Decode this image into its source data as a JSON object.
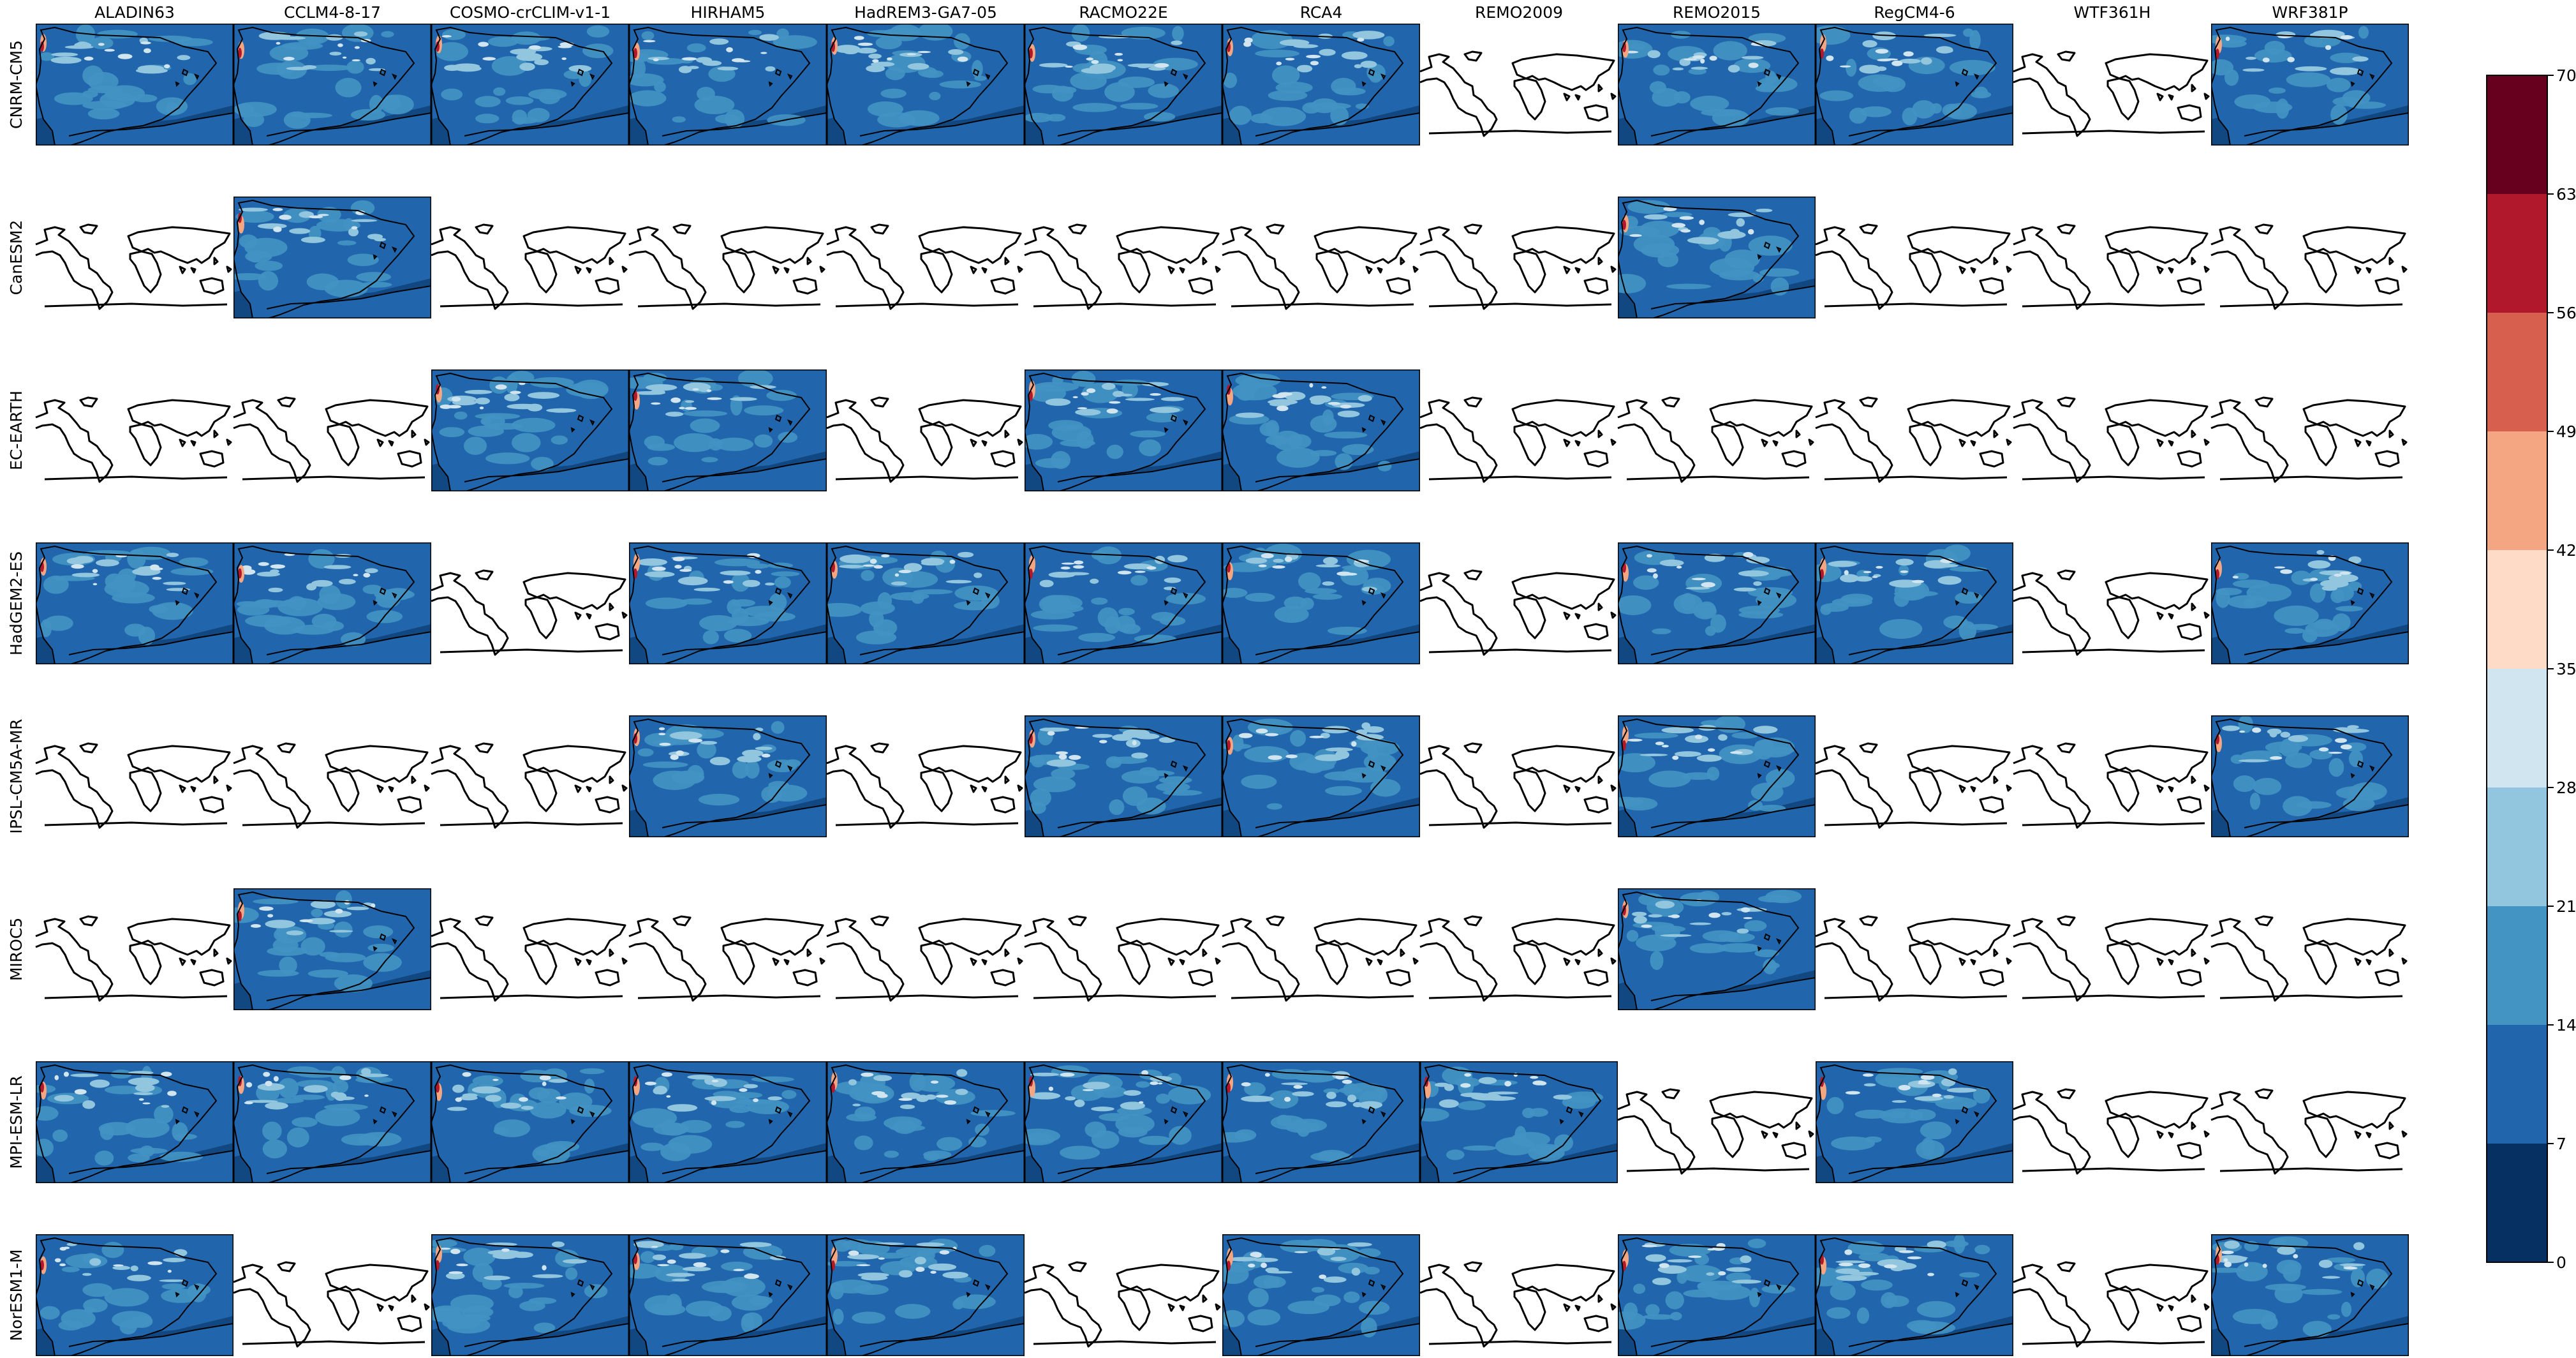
{
  "chart_data": {
    "type": "heatmap",
    "title": "",
    "columns": [
      "ALADIN63",
      "CCLM4-8-17",
      "COSMO-crCLIM-v1-1",
      "HIRHAM5",
      "HadREM3-GA7-05",
      "RACMO22E",
      "RCA4",
      "REMO2009",
      "REMO2015",
      "RegCM4-6",
      "WTF361H",
      "WRF381P"
    ],
    "rows": [
      "CNRM-CM5",
      "CanESM2",
      "EC-EARTH",
      "HadGEM2-ES",
      "IPSL-CM5A-MR",
      "MIROC5",
      "MPI-ESM-LR",
      "NorESM1-M"
    ],
    "available": [
      [
        1,
        1,
        1,
        1,
        1,
        1,
        1,
        0,
        1,
        1,
        0,
        1
      ],
      [
        0,
        1,
        0,
        0,
        0,
        0,
        0,
        0,
        1,
        0,
        0,
        0
      ],
      [
        0,
        0,
        1,
        1,
        0,
        1,
        1,
        0,
        0,
        0,
        0,
        0
      ],
      [
        1,
        1,
        0,
        1,
        1,
        1,
        1,
        0,
        1,
        1,
        0,
        1
      ],
      [
        0,
        0,
        0,
        1,
        0,
        1,
        1,
        0,
        1,
        0,
        0,
        1
      ],
      [
        0,
        1,
        0,
        0,
        0,
        0,
        0,
        0,
        1,
        0,
        0,
        0
      ],
      [
        1,
        1,
        1,
        1,
        1,
        1,
        1,
        1,
        0,
        1,
        0,
        0
      ],
      [
        1,
        0,
        1,
        1,
        1,
        0,
        1,
        0,
        1,
        1,
        0,
        1
      ]
    ],
    "missing_panel": "world coastline map",
    "colorbar": {
      "ticks": [
        "0",
        "7",
        "14",
        "21",
        "28",
        "35",
        "42",
        "49",
        "56",
        "63",
        "70"
      ],
      "range": [
        0,
        70
      ],
      "step": 7,
      "colormap": "RdBu_r",
      "colors": [
        "#053061",
        "#2166ac",
        "#4393c3",
        "#92c5de",
        "#d1e5f0",
        "#fddbc7",
        "#f4a582",
        "#d6604d",
        "#b2182b",
        "#67001f"
      ]
    },
    "map_region": "Iberian Peninsula"
  }
}
